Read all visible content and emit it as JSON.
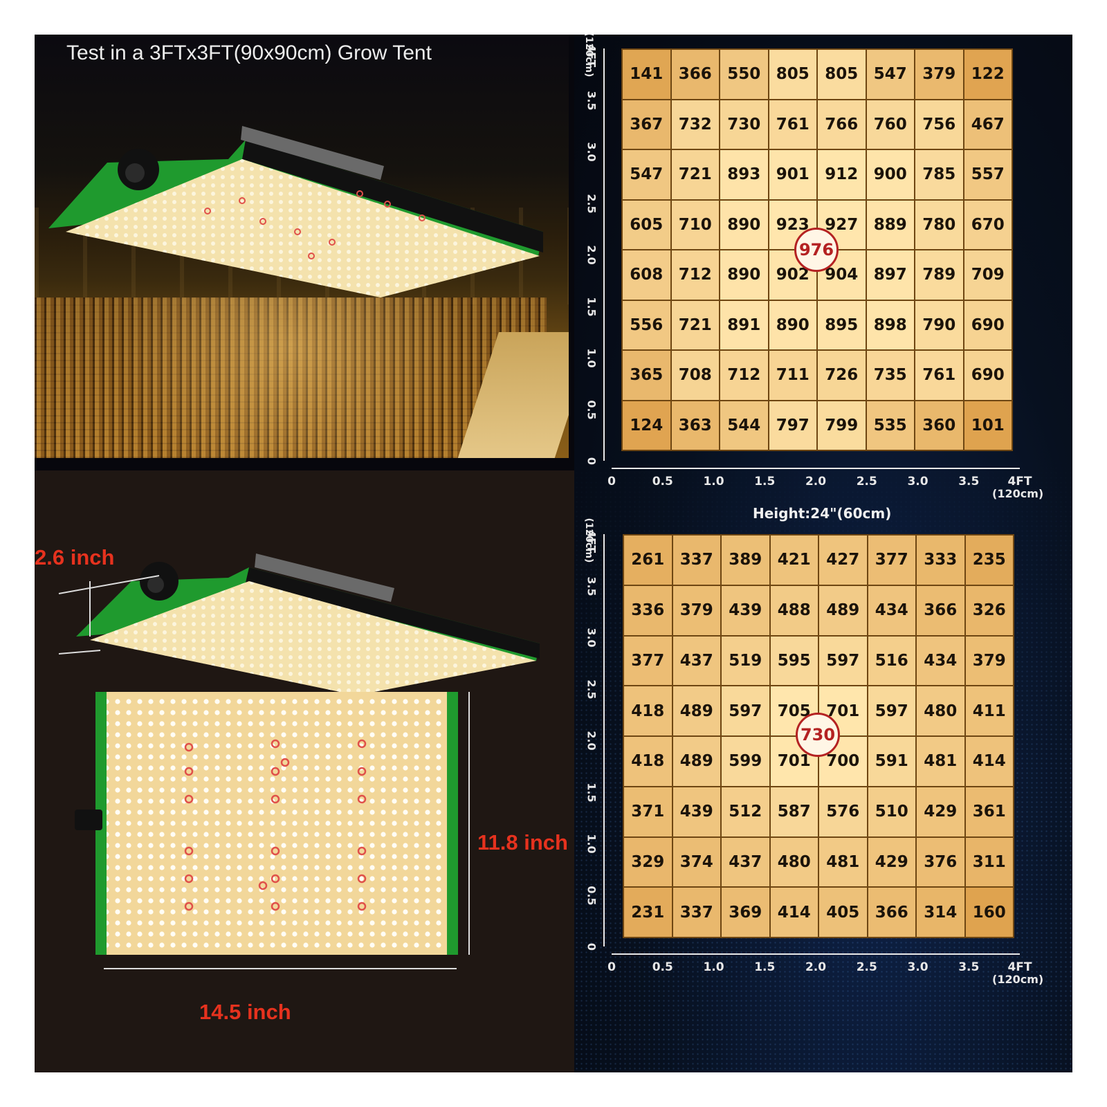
{
  "photo": {
    "title": "Test in a 3FTx3FT(90x90cm) Grow Tent"
  },
  "product": {
    "height_label": "2.6 inch",
    "length_label": "11.8 inch",
    "width_label": "14.5 inch"
  },
  "colors": {
    "cell_low": "#d48c2f",
    "cell_high": "#ffe6ad",
    "panel_green": "#1f9a2e",
    "dimension_red": "#e6321e",
    "peak_ring": "#b42222"
  },
  "axis": {
    "x_ticks": [
      "0",
      "0.5",
      "1.0",
      "1.5",
      "2.0",
      "2.5",
      "3.0",
      "3.5"
    ],
    "x_end": "4FT",
    "y_ticks": [
      "0",
      "0.5",
      "1.0",
      "1.5",
      "2.0",
      "2.5",
      "3.0",
      "3.5"
    ],
    "y_end": "4FT",
    "unit": "(120cm)"
  },
  "chart_data": [
    {
      "type": "heatmap",
      "title": "",
      "xlabel": "",
      "ylabel": "",
      "x_range": [
        0,
        4
      ],
      "y_range": [
        0,
        4
      ],
      "peak": 976,
      "values": [
        [
          141,
          366,
          550,
          805,
          805,
          547,
          379,
          122
        ],
        [
          367,
          732,
          730,
          761,
          766,
          760,
          756,
          467
        ],
        [
          547,
          721,
          893,
          901,
          912,
          900,
          785,
          557
        ],
        [
          605,
          710,
          890,
          923,
          927,
          889,
          780,
          670
        ],
        [
          608,
          712,
          890,
          902,
          904,
          897,
          789,
          709
        ],
        [
          556,
          721,
          891,
          890,
          895,
          898,
          790,
          690
        ],
        [
          365,
          708,
          712,
          711,
          726,
          735,
          761,
          690
        ],
        [
          124,
          363,
          544,
          797,
          799,
          535,
          360,
          101
        ]
      ]
    },
    {
      "type": "heatmap",
      "title": "Height:24\"(60cm)",
      "xlabel": "",
      "ylabel": "",
      "x_range": [
        0,
        4
      ],
      "y_range": [
        0,
        4
      ],
      "peak": 730,
      "values": [
        [
          261,
          337,
          389,
          421,
          427,
          377,
          333,
          235
        ],
        [
          336,
          379,
          439,
          488,
          489,
          434,
          366,
          326
        ],
        [
          377,
          437,
          519,
          595,
          597,
          516,
          434,
          379
        ],
        [
          418,
          489,
          597,
          705,
          701,
          597,
          480,
          411
        ],
        [
          418,
          489,
          599,
          701,
          700,
          591,
          481,
          414
        ],
        [
          371,
          439,
          512,
          587,
          576,
          510,
          429,
          361
        ],
        [
          329,
          374,
          437,
          480,
          481,
          429,
          376,
          311
        ],
        [
          231,
          337,
          369,
          414,
          405,
          366,
          314,
          160
        ]
      ]
    }
  ]
}
